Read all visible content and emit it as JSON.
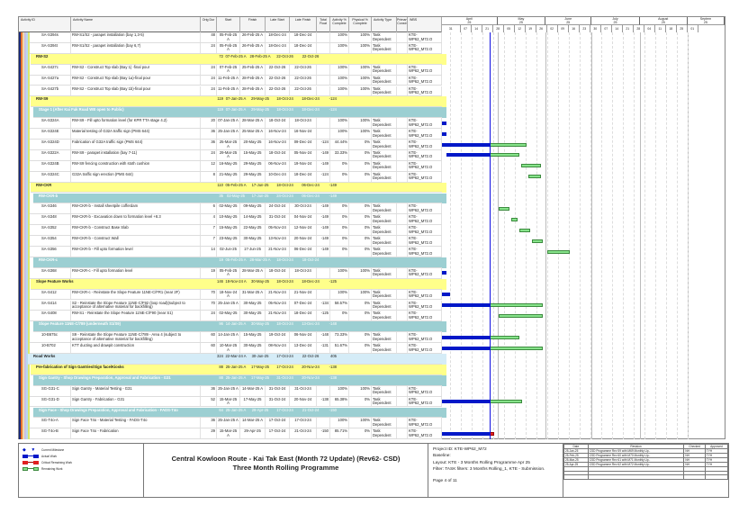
{
  "columns": [
    "Activity ID",
    "Activity Name",
    "Orig Dur",
    "Start",
    "Finish",
    "Late Start",
    "Late Finish",
    "Total Float",
    "Activity % Complete",
    "Physical % Complete",
    "Activity Type",
    "Primary Constr",
    "WBS"
  ],
  "timeline": {
    "months": [
      {
        "label": "April",
        "year": "25"
      },
      {
        "label": "May",
        "year": "25"
      },
      {
        "label": "June",
        "year": "25"
      },
      {
        "label": "July",
        "year": "25"
      },
      {
        "label": "August",
        "year": "25"
      },
      {
        "label": "Septem",
        "year": "25"
      }
    ],
    "weeks": [
      "31",
      "07",
      "14",
      "21",
      "28",
      "05",
      "12",
      "19",
      "26",
      "02",
      "09",
      "16",
      "23",
      "30",
      "07",
      "14",
      "21",
      "28",
      "04",
      "11",
      "18",
      "25",
      "01"
    ],
    "range": [
      "26-Mar-25",
      "25-Sep-25"
    ],
    "data_date": "26-Apr-25"
  },
  "colors": {
    "actual": "#0018c8",
    "remaining": "#86e38a",
    "critical": "#e02020",
    "wbs1": "#ffff8a",
    "wbs2": "#9ccfd2",
    "wbs0": "#d5ecf7",
    "data_date": "#1010e0"
  },
  "rows": [
    {
      "kind": "task",
      "id": "SA-S394s",
      "name": "RW-S1/S2 - parapet installation (bay 1,3-5)",
      "dur": "48",
      "start": "05-Feb-25 A",
      "finish": "26-Feb-25 A",
      "ls": "18-Dec-24",
      "lf": "18-Dec-24",
      "tf": "",
      "ac": "100%",
      "pc": "100%",
      "type": "Task Dependent",
      "wbs": "KTE-WP62_M72.O"
    },
    {
      "kind": "task",
      "id": "SA-S394t",
      "name": "RW-S1/S2 - parapet installation (bay 6,7)",
      "dur": "24",
      "start": "05-Feb-25 A",
      "finish": "26-Feb-25 A",
      "ls": "18-Dec-24",
      "lf": "18-Dec-24",
      "tf": "",
      "ac": "100%",
      "pc": "100%",
      "type": "Task Dependent",
      "wbs": "KTE-WP62_M72.O"
    },
    {
      "kind": "wbs1",
      "id": "RW-S2",
      "dur": "72",
      "start": "07-Feb-25 A",
      "finish": "28-Feb-25 A",
      "ls": "22-Oct-26",
      "lf": "22-Oct-26",
      "tf": ""
    },
    {
      "kind": "task",
      "id": "SA-S427c",
      "name": "RW-S2 - Construct Top slab (Bay 1) -final pour",
      "dur": "24",
      "start": "07-Feb-25 A",
      "finish": "25-Feb-25 A",
      "ls": "22-Oct-26",
      "lf": "22-Oct-26",
      "tf": "",
      "ac": "100%",
      "pc": "100%",
      "type": "Task Dependent",
      "wbs": "KTE-WP62_M72.O"
    },
    {
      "kind": "task",
      "id": "SA-S427a",
      "name": "RW-S2 - Construct Top slab (Bay 1a)-final pour",
      "dur": "24",
      "start": "11-Feb-25 A",
      "finish": "28-Feb-25 A",
      "ls": "22-Oct-26",
      "lf": "22-Oct-26",
      "tf": "",
      "ac": "100%",
      "pc": "100%",
      "type": "Task Dependent",
      "wbs": "KTE-WP62_M72.O"
    },
    {
      "kind": "task",
      "id": "SA-S427b",
      "name": "RW-S2 - Construct Top slab (Bay 1b)-final pour",
      "dur": "24",
      "start": "11-Feb-25 A",
      "finish": "28-Feb-25 A",
      "ls": "22-Oct-26",
      "lf": "22-Oct-26",
      "tf": "",
      "ac": "100%",
      "pc": "100%",
      "type": "Task Dependent",
      "wbs": "KTE-WP62_M72.O"
    },
    {
      "kind": "wbs1",
      "id": "RW-S9",
      "dur": "119",
      "start": "07-Jan-25 A",
      "finish": "29-May-25",
      "ls": "18-Oct-24",
      "lf": "18-Dec-24",
      "tf": "-124"
    },
    {
      "kind": "wbs2",
      "id": "Stage 1 (After Kai Fuk Road WB open to Public)",
      "dur": "119",
      "start": "07-Jan-25 A",
      "finish": "29-May-25",
      "ls": "18-Oct-24",
      "lf": "18-Dec-24",
      "tf": "-124"
    },
    {
      "kind": "task",
      "id": "SA-S324A",
      "name": "RW-S9 - Fill upto formation level (for KPR TTA stage 4.2)",
      "dur": "20",
      "start": "07-Jan-25 A",
      "finish": "28-Mar-25 A",
      "ls": "18-Oct-24",
      "lf": "18-Oct-24",
      "tf": "",
      "ac": "100%",
      "pc": "100%",
      "type": "Task Dependent",
      "wbs": "KTE-WP62_M72.O"
    },
    {
      "kind": "task",
      "id": "SA-S324E",
      "name": "Material testing of G32A traffic sign (PMS 644)",
      "dur": "36",
      "start": "25-Jan-25 A",
      "finish": "25-Mar-25 A",
      "ls": "16-Nov-24",
      "lf": "16-Nov-24",
      "tf": "",
      "ac": "100%",
      "pc": "100%",
      "type": "Task Dependent",
      "wbs": "KTE-WP62_M72.O"
    },
    {
      "kind": "task",
      "id": "SA-S324D",
      "name": "Fabrication of G32A traffic sign (PMS 644)",
      "dur": "36",
      "start": "25-Mar-25 A",
      "finish": "20-May-25",
      "ls": "16-Nov-24",
      "lf": "09-Dec-24",
      "tf": "-124",
      "ac": "44.44%",
      "pc": "0%",
      "type": "Task Dependent",
      "wbs": "KTE-WP62_M72.O"
    },
    {
      "kind": "task",
      "id": "SA-S322A",
      "name": "RW-S9 - parapet installation (bay 7-11)",
      "dur": "24",
      "start": "29-Mar-25 A",
      "finish": "15-May-25",
      "ls": "18-Oct-24",
      "lf": "05-Nov-24",
      "tf": "-149",
      "ac": "33.33%",
      "pc": "0%",
      "type": "Task Dependent",
      "wbs": "KTE-WP62_M72.O"
    },
    {
      "kind": "task",
      "id": "SA-S324B",
      "name": "RW-S9 fencing construction with stoth cushion",
      "dur": "12",
      "start": "16-May-25",
      "finish": "29-May-25",
      "ls": "06-Nov-24",
      "lf": "19-Nov-24",
      "tf": "-149",
      "ac": "0%",
      "pc": "0%",
      "type": "Task Dependent",
      "wbs": "KTE-WP62_M72.O"
    },
    {
      "kind": "task",
      "id": "SA-S324C",
      "name": "G32A traffic sign erection (PMS 644)",
      "dur": "8",
      "start": "21-May-25",
      "finish": "29-May-25",
      "ls": "10-Dec-24",
      "lf": "18-Dec-24",
      "tf": "-124",
      "ac": "0%",
      "pc": "0%",
      "type": "Task Dependent",
      "wbs": "KTE-WP62_M72.O"
    },
    {
      "kind": "wbs1",
      "id": "RW-CKR",
      "dur": "110",
      "start": "05-Feb-25 A",
      "finish": "17-Jun-25",
      "ls": "18-Oct-24",
      "lf": "06-Dec-24",
      "tf": "-149"
    },
    {
      "kind": "wbs2",
      "id": "RW-CKR-b",
      "dur": "35",
      "start": "02-May-25",
      "finish": "17-Jun-25",
      "ls": "24-Oct-24",
      "lf": "06-Dec-24",
      "tf": "-149"
    },
    {
      "kind": "task",
      "id": "SA-S346",
      "name": "RW-CKR-b - Install sheetpile cofferdam",
      "dur": "6",
      "start": "02-May-25",
      "finish": "09-May-25",
      "ls": "24-Oct-24",
      "lf": "30-Oct-24",
      "tf": "-149",
      "ac": "0%",
      "pc": "0%",
      "type": "Task Dependent",
      "wbs": "KTE-WP62_M72.O"
    },
    {
      "kind": "task",
      "id": "SA-S348",
      "name": "RW-CKR-b - Excavation down to formation level +8.3",
      "dur": "4",
      "start": "10-May-25",
      "finish": "14-May-25",
      "ls": "31-Oct-24",
      "lf": "04-Nov-24",
      "tf": "-149",
      "ac": "0%",
      "pc": "0%",
      "type": "Task Dependent",
      "wbs": "KTE-WP62_M72.O"
    },
    {
      "kind": "task",
      "id": "SA-S352",
      "name": "RW-CKR-b - Construct Base Slab",
      "dur": "7",
      "start": "15-May-25",
      "finish": "22-May-25",
      "ls": "05-Nov-24",
      "lf": "12-Nov-24",
      "tf": "-149",
      "ac": "0%",
      "pc": "0%",
      "type": "Task Dependent",
      "wbs": "KTE-WP62_M72.O"
    },
    {
      "kind": "task",
      "id": "SA-S354",
      "name": "RW-CKR-b - Construct Wall",
      "dur": "7",
      "start": "23-May-25",
      "finish": "30-May-25",
      "ls": "13-Nov-24",
      "lf": "20-Nov-24",
      "tf": "-149",
      "ac": "0%",
      "pc": "0%",
      "type": "Task Dependent",
      "wbs": "KTE-WP62_M72.O"
    },
    {
      "kind": "task",
      "id": "SA-S356",
      "name": "RW-CKR-b - Fill upto formation level",
      "dur": "14",
      "start": "02-Jun-25",
      "finish": "17-Jun-25",
      "ls": "21-Nov-24",
      "lf": "06-Dec-24",
      "tf": "-149",
      "ac": "0%",
      "pc": "0%",
      "type": "Task Dependent",
      "wbs": "KTE-WP62_M72.O"
    },
    {
      "kind": "wbs2",
      "id": "RW-CKR-c",
      "dur": "19",
      "start": "05-Feb-25 A",
      "finish": "28-Mar-25 A",
      "ls": "18-Oct-24",
      "lf": "18-Oct-24",
      "tf": ""
    },
    {
      "kind": "task",
      "id": "SA-S368",
      "name": "RW-CKR-c - Fill upto formation level",
      "dur": "19",
      "start": "05-Feb-25 A",
      "finish": "28-Mar-25 A",
      "ls": "18-Oct-24",
      "lf": "18-Oct-24",
      "tf": "",
      "ac": "100%",
      "pc": "100%",
      "type": "Task Dependent",
      "wbs": "KTE-WP62_M72.O"
    },
    {
      "kind": "wbs1",
      "id": "Slope Feature Works",
      "dur": "146",
      "start": "18-Nov-24 A",
      "finish": "30-May-25",
      "ls": "18-Oct-24",
      "lf": "18-Dec-24",
      "tf": "-125"
    },
    {
      "kind": "task",
      "id": "SA-S412",
      "name": "RW-CKR-c - Reinstate the Slope Feature 11NE-C/FR1 (near 2F)",
      "dur": "70",
      "start": "18-Nov-24 A",
      "finish": "31-Mar-25 A",
      "ls": "21-Nov-24",
      "lf": "21-Nov-24",
      "tf": "",
      "ac": "100%",
      "pc": "100%",
      "type": "Task Dependent",
      "wbs": "KTE-WP62_M72.O"
    },
    {
      "kind": "task",
      "id": "SA-S414",
      "name": "S2 - Reinstate the Slope Feature 11NE-C/F92 (loop road)(subject to acceptance of alternative material for backfilling)",
      "dur": "70",
      "start": "25-Jan-25 A",
      "finish": "30-May-25",
      "ls": "05-Nov-24",
      "lf": "07-Dec-24",
      "tf": "-134",
      "ac": "58.57%",
      "pc": "0%",
      "type": "Task Dependent",
      "wbs": "KTE-WP62_M72.O"
    },
    {
      "kind": "task",
      "id": "SA-S408",
      "name": "RW-S1 - Reinstate the Slope Feature 11NE-C/F90 (near S1)",
      "dur": "24",
      "start": "02-May-25",
      "finish": "30-May-25",
      "ls": "21-Nov-24",
      "lf": "18-Dec-24",
      "tf": "-125",
      "ac": "0%",
      "pc": "0%",
      "type": "Task Dependent",
      "wbs": "KTE-WP62_M72.O"
    },
    {
      "kind": "wbs2",
      "id": "Slope Feature 11NE-C/789 (underneath S1/S9)",
      "dur": "96",
      "start": "14-Jan-25 A",
      "finish": "30-May-25",
      "ls": "18-Oct-24",
      "lf": "13-Dec-24",
      "tf": "-148"
    },
    {
      "kind": "task",
      "id": "10-B675c",
      "name": "S9 - Reinstate the Slope Feature 11NE-C/789 - Area 4 (subject to acceptance of alternative material for backfilling)",
      "dur": "60",
      "start": "14-Jan-25 A",
      "finish": "15-May-25",
      "ls": "19-Oct-24",
      "lf": "06-Nov-24",
      "tf": "-148",
      "ac": "73.33%",
      "pc": "0%",
      "type": "Task Dependent",
      "wbs": "KTE-WP62_M72.O"
    },
    {
      "kind": "task",
      "id": "10-B702",
      "name": "KTT ducting and drawpit construction",
      "dur": "60",
      "start": "10-Mar-25 A",
      "finish": "30-May-25",
      "ls": "08-Nov-24",
      "lf": "13-Dec-24",
      "tf": "-131",
      "ac": "51.67%",
      "pc": "0%",
      "type": "Task Dependent",
      "wbs": "KTE-WP62_M72.O"
    },
    {
      "kind": "wbs0",
      "id": "Road Works",
      "dur": "324",
      "start": "22-Mar-24 A",
      "finish": "30-Jun-25",
      "ls": "17-Oct-24",
      "lf": "22-Oct-26",
      "tf": "405"
    },
    {
      "kind": "wbs1",
      "id": "Pre-fabrication of Sign Gantries/Sign face/Kiosks",
      "dur": "88",
      "start": "25-Jan-25 A",
      "finish": "17-May-25",
      "ls": "17-Oct-24",
      "lf": "20-Nov-24",
      "tf": "-138"
    },
    {
      "kind": "wbs2",
      "id": "Sign Gantry - Shop Drawings Preparation, Approval and Fabrication - G31",
      "dur": "88",
      "start": "25-Jan-25 A",
      "finish": "17-May-25",
      "ls": "31-Oct-24",
      "lf": "20-Nov-24",
      "tf": "-138"
    },
    {
      "kind": "task",
      "id": "SG-G31-C",
      "name": "Sign Gantry - Material Testing - G31",
      "dur": "36",
      "start": "25-Jan-25 A",
      "finish": "14-Mar-25 A",
      "ls": "31-Oct-24",
      "lf": "31-Oct-24",
      "tf": "",
      "ac": "100%",
      "pc": "100%",
      "type": "Task Dependent",
      "wbs": "KTE-WP62_M72.O"
    },
    {
      "kind": "task",
      "id": "SG-G31-D",
      "name": "Sign Gantry - Fabrication - G31",
      "dur": "52",
      "start": "15-Mar-25 A",
      "finish": "17-May-25",
      "ls": "31-Oct-24",
      "lf": "20-Nov-24",
      "tf": "-138",
      "ac": "65.38%",
      "pc": "0%",
      "type": "Task Dependent",
      "wbs": "KTE-WP62_M72.O"
    },
    {
      "kind": "wbs2",
      "id": "Sign Face - Shop Drawings Preparation, Approval and Fabrication - FADS-T4o",
      "dur": "64",
      "start": "25-Jan-25 A",
      "finish": "29-Apr-25",
      "ls": "17-Oct-24",
      "lf": "21-Oct-24",
      "tf": "-150"
    },
    {
      "kind": "task",
      "id": "SG-T4o-A",
      "name": "Sign Face T4o - Material Testing - FADS-T4o",
      "dur": "36",
      "start": "25-Jan-25 A",
      "finish": "14-Mar-25 A",
      "ls": "17-Oct-24",
      "lf": "17-Oct-24",
      "tf": "",
      "ac": "100%",
      "pc": "100%",
      "type": "Task Dependent",
      "wbs": "KTE-WP62_M72.O"
    },
    {
      "kind": "task",
      "id": "SG-T4o-B",
      "name": "Sign Face T4o - Fabrication",
      "dur": "29",
      "start": "15-Mar-25 A",
      "finish": "29-Apr-25",
      "ls": "17-Oct-24",
      "lf": "21-Oct-24",
      "tf": "-150",
      "ac": "85.71%",
      "pc": "0%",
      "type": "Task Dependent",
      "wbs": "KTE-WP62_M72.O",
      "critical": true
    }
  ],
  "legend": [
    {
      "label": "Current Milestone"
    },
    {
      "label": "Actual Work"
    },
    {
      "label": "Critical Remaining Work"
    },
    {
      "label": "Remaining Work"
    }
  ],
  "footer": {
    "title1": "Central Kowloon Route - Kai Tak East (Month 72 Update) (Rev62- CSD)",
    "title2": "Three Month Rolling Programme",
    "project_id": "Project ID: KTE-WP62_M72",
    "baseline": "Baseline:",
    "layout": "Layout: KTE - 3 Months Rolling Programme Apr 25",
    "filter": "Filter: TASK filters: 3 Months Rolling_1, KTE - Submission.",
    "page": "Page 4 of 11"
  },
  "revisions": {
    "headers": [
      "Date",
      "Revision",
      "Checked",
      "Approved"
    ],
    "rows": [
      [
        "25-Jan-25",
        "CSD Programme Rev 59 with M69 Monthly Up..",
        "NH",
        "TYH"
      ],
      [
        "25-Feb-25",
        "CSD Programme Rev 60 with M70 Monthly Up..",
        "NH",
        "TYH"
      ],
      [
        "25-Mar-25",
        "CSD Programme Rev 61 with M71 Monthly Up..",
        "NH",
        "TYH"
      ],
      [
        "25-Apr-25",
        "CSD Programme Rev 62 with M72 Monthly Up..",
        "NH",
        "TYH"
      ]
    ]
  }
}
